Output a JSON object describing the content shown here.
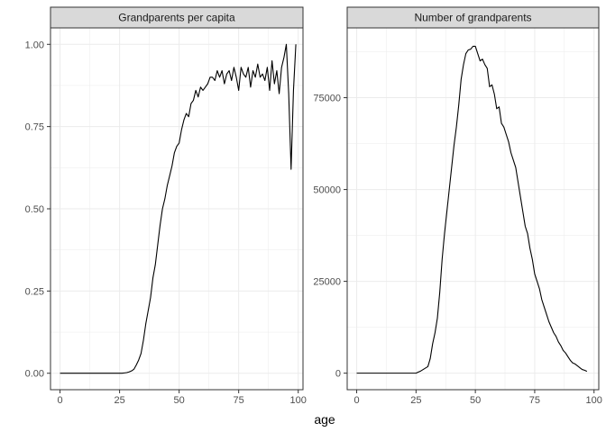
{
  "xlabel": "age",
  "chart_data": [
    {
      "type": "line",
      "title": "Grandparents per capita",
      "xlim": [
        -4,
        102
      ],
      "ylim": [
        -0.05,
        1.05
      ],
      "x_ticks": [
        0,
        25,
        50,
        75,
        100
      ],
      "x_tick_labels": [
        "0",
        "25",
        "50",
        "75",
        "100"
      ],
      "y_ticks": [
        0,
        0.25,
        0.5,
        0.75,
        1.0
      ],
      "y_tick_labels": [
        "0.00",
        "0.25",
        "0.50",
        "0.75",
        "1.00"
      ],
      "grid": true,
      "series": [
        {
          "x": [
            0,
            1,
            2,
            3,
            4,
            5,
            6,
            7,
            8,
            9,
            10,
            11,
            12,
            13,
            14,
            15,
            16,
            17,
            18,
            19,
            20,
            21,
            22,
            23,
            24,
            25,
            26,
            27,
            28,
            29,
            30,
            31,
            32,
            33,
            34,
            35,
            36,
            37,
            38,
            39,
            40,
            41,
            42,
            43,
            44,
            45,
            46,
            47,
            48,
            49,
            50,
            51,
            52,
            53,
            54,
            55,
            56,
            57,
            58,
            59,
            60,
            61,
            62,
            63,
            64,
            65,
            66,
            67,
            68,
            69,
            70,
            71,
            72,
            73,
            74,
            75,
            76,
            77,
            78,
            79,
            80,
            81,
            82,
            83,
            84,
            85,
            86,
            87,
            88,
            89,
            90,
            91,
            92,
            93,
            94,
            95,
            96,
            97,
            98,
            99
          ],
          "values": [
            0,
            0,
            0,
            0,
            0,
            0,
            0,
            0,
            0,
            0,
            0,
            0,
            0,
            0,
            0,
            0,
            0,
            0,
            0,
            0,
            0,
            0,
            0,
            0,
            0,
            0,
            0,
            0.001,
            0.002,
            0.004,
            0.007,
            0.012,
            0.025,
            0.04,
            0.06,
            0.1,
            0.15,
            0.19,
            0.23,
            0.29,
            0.33,
            0.39,
            0.45,
            0.5,
            0.53,
            0.57,
            0.6,
            0.63,
            0.67,
            0.69,
            0.7,
            0.74,
            0.77,
            0.79,
            0.78,
            0.82,
            0.83,
            0.86,
            0.84,
            0.87,
            0.86,
            0.87,
            0.88,
            0.9,
            0.9,
            0.89,
            0.92,
            0.9,
            0.92,
            0.88,
            0.91,
            0.92,
            0.89,
            0.93,
            0.9,
            0.86,
            0.93,
            0.91,
            0.9,
            0.93,
            0.87,
            0.92,
            0.9,
            0.94,
            0.9,
            0.91,
            0.89,
            0.93,
            0.86,
            0.95,
            0.88,
            0.92,
            0.85,
            0.93,
            0.96,
            1.0,
            0.85,
            0.62,
            0.86,
            1.0
          ]
        }
      ]
    },
    {
      "type": "line",
      "title": "Number of grandparents",
      "xlim": [
        -4,
        102
      ],
      "ylim": [
        -4500,
        94000
      ],
      "x_ticks": [
        0,
        25,
        50,
        75,
        100
      ],
      "x_tick_labels": [
        "0",
        "25",
        "50",
        "75",
        "100"
      ],
      "y_ticks": [
        0,
        25000,
        50000,
        75000
      ],
      "y_tick_labels": [
        "0",
        "25000",
        "50000",
        "75000"
      ],
      "grid": true,
      "series": [
        {
          "x": [
            0,
            5,
            10,
            15,
            20,
            25,
            26,
            27,
            28,
            29,
            30,
            31,
            32,
            33,
            34,
            35,
            36,
            37,
            38,
            39,
            40,
            41,
            42,
            43,
            44,
            45,
            46,
            47,
            48,
            49,
            50,
            51,
            52,
            53,
            54,
            55,
            56,
            57,
            58,
            59,
            60,
            61,
            62,
            63,
            64,
            65,
            66,
            67,
            68,
            69,
            70,
            71,
            72,
            73,
            74,
            75,
            76,
            77,
            78,
            79,
            80,
            81,
            82,
            83,
            84,
            85,
            86,
            87,
            88,
            89,
            90,
            91,
            92,
            93,
            94,
            95,
            96,
            97
          ],
          "values": [
            0,
            0,
            0,
            0,
            0,
            0,
            300,
            600,
            1000,
            1400,
            1800,
            4000,
            8000,
            11000,
            15000,
            22000,
            31000,
            38000,
            44000,
            50000,
            56000,
            62000,
            67000,
            73000,
            80000,
            84000,
            87000,
            88000,
            88200,
            89000,
            89000,
            87000,
            85000,
            85500,
            84000,
            83000,
            78000,
            78500,
            76000,
            72000,
            72500,
            68000,
            67000,
            65000,
            63000,
            60000,
            58000,
            56000,
            52000,
            48000,
            44000,
            40000,
            38000,
            34000,
            31000,
            27000,
            25000,
            23000,
            20000,
            18000,
            16000,
            14000,
            12500,
            11000,
            10000,
            8500,
            7500,
            6200,
            5500,
            4500,
            3500,
            2800,
            2500,
            2000,
            1500,
            1000,
            800,
            500
          ]
        }
      ]
    }
  ]
}
